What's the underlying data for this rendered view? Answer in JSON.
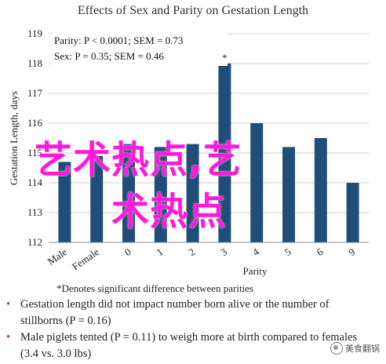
{
  "chart_data": {
    "type": "bar",
    "title": "Effects of Sex and Parity on Gestation Length",
    "ylabel": "Gestation Length, days",
    "xlabel": "Parity",
    "ylim": [
      112,
      119
    ],
    "yticks": [
      112,
      113,
      114,
      115,
      116,
      117,
      118,
      119
    ],
    "categories": [
      "Male",
      "Female",
      "0",
      "1",
      "2",
      "3",
      "4",
      "5",
      "6",
      "9"
    ],
    "values": [
      114.7,
      114.9,
      115.3,
      115.2,
      115.3,
      118.0,
      116.0,
      115.2,
      115.5,
      114.0
    ],
    "bar_color": "#1f4e79",
    "annotations": [
      {
        "text": "*",
        "category": "3"
      }
    ],
    "stats": {
      "parity": "Parity: P < 0.0001; SEM = 0.73",
      "sex": "Sex: P = 0.35; SEM = 0.46"
    },
    "legend_note": "*Denotes significant difference between parities"
  },
  "overlay": {
    "line1": "艺术热点,艺",
    "line2": "术热点",
    "color": "#ff1ad9"
  },
  "bullets": [
    "Gestation length did not impact number born alive or the number of stillborns (P = 0.16)",
    "Male piglets tented (P = 0.11) to weigh more at birth compared to females (3.4 vs. 3.0 lbs)"
  ],
  "watermark": {
    "text": "美食翻锅",
    "icon": "wechat-icon"
  }
}
